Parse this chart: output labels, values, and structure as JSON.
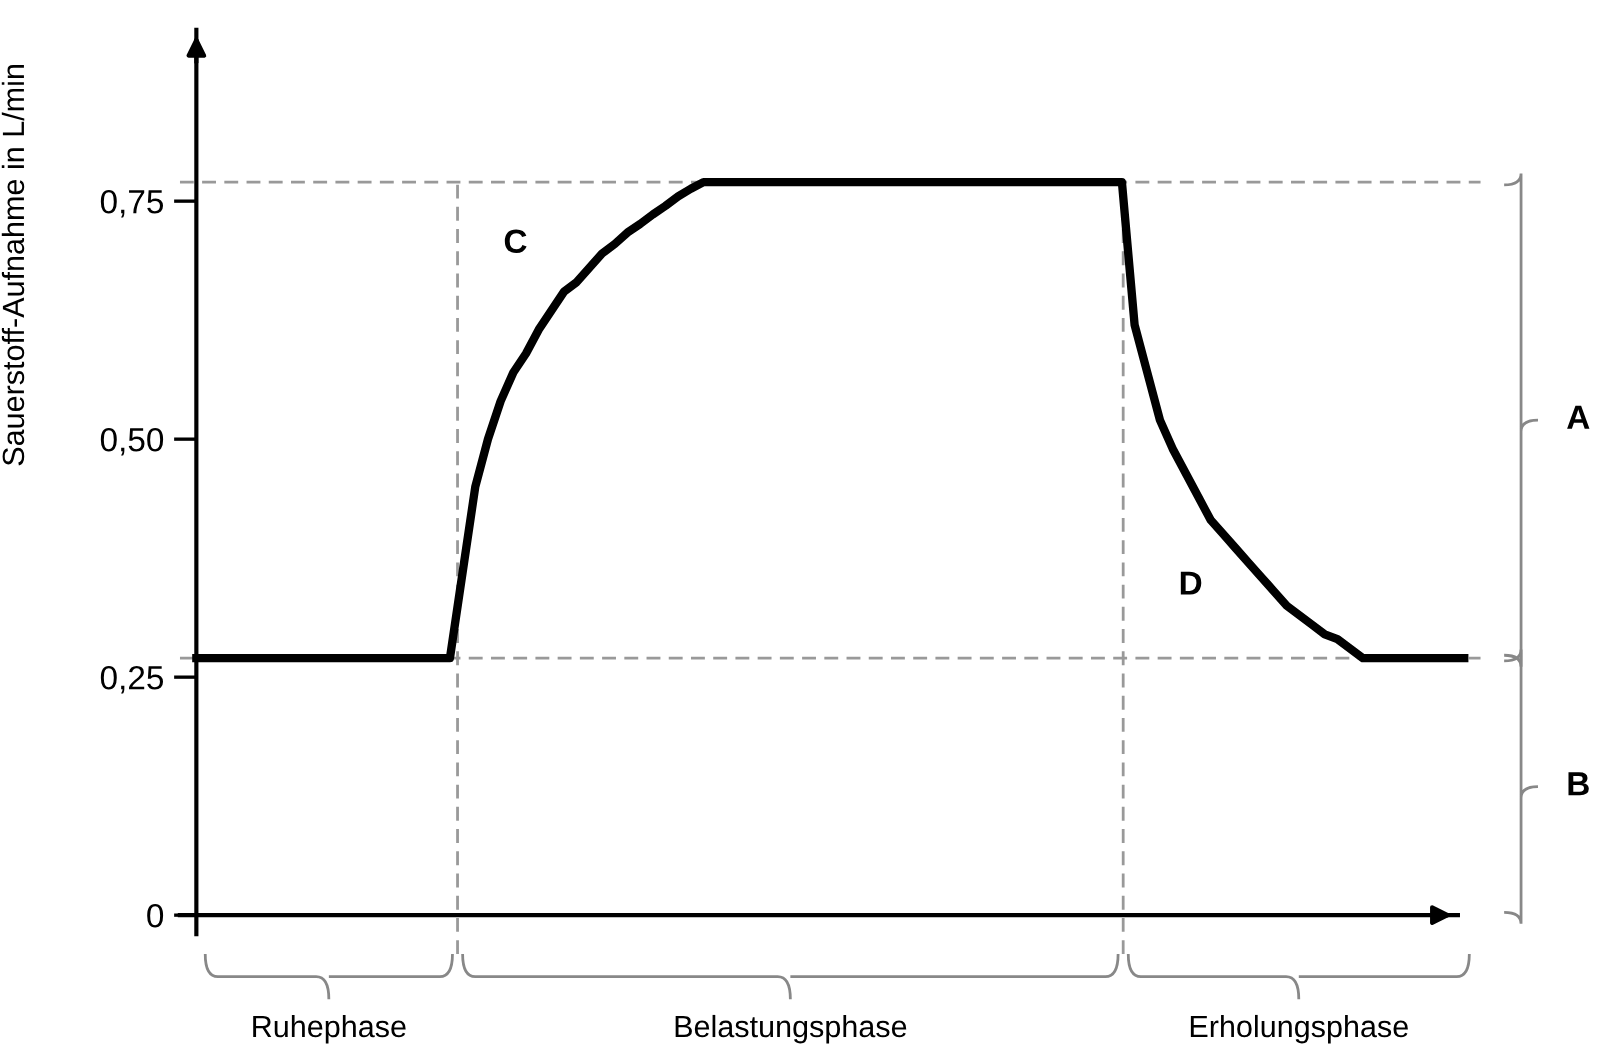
{
  "chart_data": {
    "type": "line",
    "ylabel": "Sauerstoff-Aufnahme in L/min",
    "categories": [
      null,
      null,
      null,
      null,
      null,
      null,
      null,
      null,
      null,
      null,
      null,
      null,
      null,
      null,
      null,
      null,
      null,
      null,
      null,
      null,
      null,
      null,
      null,
      null,
      null,
      null,
      null,
      null,
      null,
      null,
      null,
      null,
      null,
      null,
      null,
      null,
      null,
      null,
      null,
      null,
      null,
      null,
      null,
      null,
      null,
      null,
      null,
      null,
      null,
      null,
      null,
      null,
      null,
      null,
      null,
      null,
      null,
      null,
      null,
      null,
      null,
      null,
      null,
      null,
      null,
      null,
      null,
      null,
      null,
      null,
      null,
      null,
      null,
      null,
      null,
      null,
      null,
      null,
      null,
      null,
      null,
      null,
      null,
      null,
      null,
      null,
      null,
      null,
      null,
      null,
      null,
      null,
      null,
      null,
      null,
      null,
      null,
      null,
      null,
      null,
      null
    ],
    "series": [
      {
        "color": "#000000",
        "values": [
          0.27,
          0.27,
          0.27,
          0.27,
          0.27,
          0.27,
          0.27,
          0.27,
          0.27,
          0.27,
          0.27,
          0.27,
          0.27,
          0.27,
          0.27,
          0.27,
          0.27,
          0.27,
          0.27,
          0.27,
          0.27,
          0.36,
          0.45,
          0.5,
          0.54,
          0.57,
          0.59,
          0.615,
          0.635,
          0.655,
          0.665,
          0.68,
          0.695,
          0.705,
          0.717,
          0.726,
          0.736,
          0.745,
          0.755,
          0.763,
          0.77,
          0.77,
          0.77,
          0.77,
          0.77,
          0.77,
          0.77,
          0.77,
          0.77,
          0.77,
          0.77,
          0.77,
          0.77,
          0.77,
          0.77,
          0.77,
          0.77,
          0.77,
          0.77,
          0.77,
          0.77,
          0.77,
          0.77,
          0.77,
          0.77,
          0.77,
          0.77,
          0.77,
          0.77,
          0.77,
          0.77,
          0.77,
          0.77,
          0.77,
          0.62,
          0.57,
          0.52,
          0.49,
          0.465,
          0.44,
          0.415,
          0.4,
          0.385,
          0.37,
          0.355,
          0.34,
          0.325,
          0.315,
          0.305,
          0.295,
          0.29,
          0.28,
          0.27,
          0.27,
          0.27,
          0.27,
          0.27,
          0.27,
          0.27,
          0.27,
          0.27
        ]
      }
    ],
    "ylim": [
      -0.02,
      0.93
    ],
    "yticks": [
      0,
      {
        "value": 0.25,
        "label": "0,25"
      },
      {
        "value": 0.5,
        "label": "0,50"
      },
      {
        "value": 0.75,
        "label": "0,75"
      }
    ],
    "tick_labels": "y",
    "ref_lines": [
      {
        "axis": "y",
        "value": 0.27,
        "color": "#999999",
        "line_style": "dashed"
      },
      {
        "axis": "y",
        "value": 0.77,
        "color": "#999999",
        "line_style": "dashed"
      }
    ],
    "annotations": [
      "C",
      "D",
      "Ruhephase",
      "Belastungsphase",
      "Erholungsphase",
      "A",
      "B"
    ]
  }
}
